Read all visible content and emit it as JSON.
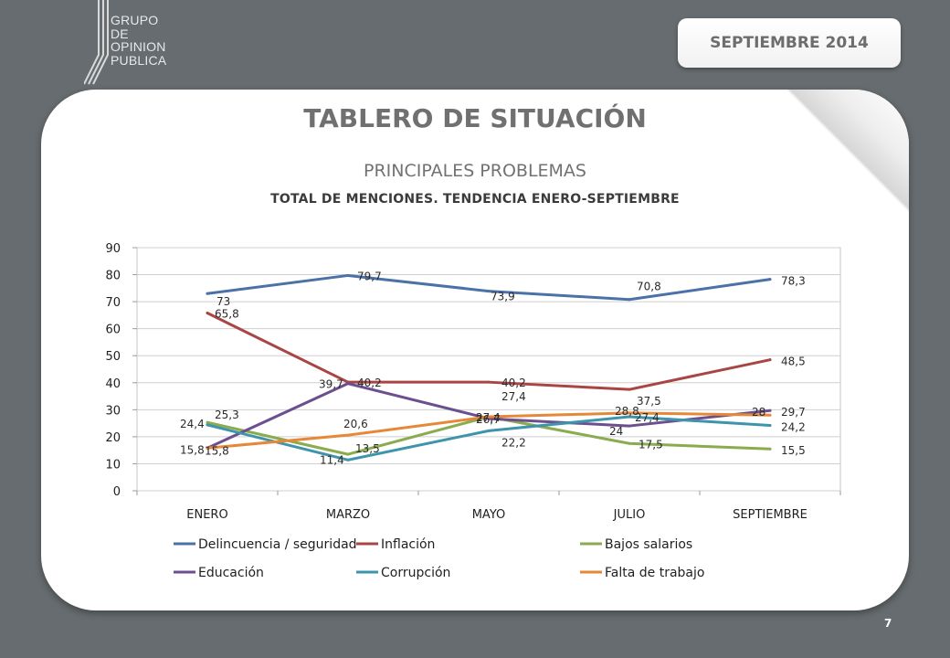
{
  "logo": {
    "text": "GRUPO\nDE\nOPINION\nPUBLICA"
  },
  "date_badge": "SEPTIEMBRE  2014",
  "header": {
    "title": "TABLERO DE SITUACIÓN",
    "subtitle": "PRINCIPALES PROBLEMAS"
  },
  "page_number": "7",
  "chart_data": {
    "type": "line",
    "title": "TOTAL DE MENCIONES. TENDENCIA ENERO-SEPTIEMBRE",
    "xlabel": "",
    "ylabel": "",
    "categories": [
      "ENERO",
      "MARZO",
      "MAYO",
      "JULIO",
      "SEPTIEMBRE"
    ],
    "ylim": [
      0,
      90
    ],
    "yticks": [
      0,
      10,
      20,
      30,
      40,
      50,
      60,
      70,
      80,
      90
    ],
    "grid": true,
    "legend": "bottom",
    "series": [
      {
        "name": "Delincuencia / seguridad",
        "color": "#4a72a8",
        "values": [
          73,
          79.7,
          73.9,
          70.8,
          78.3
        ],
        "labels": [
          "73",
          "79,7",
          "73,9",
          "70,8",
          "78,3"
        ]
      },
      {
        "name": "Inflación",
        "color": "#a94542",
        "values": [
          65.8,
          40.2,
          40.2,
          37.5,
          48.5
        ],
        "labels": [
          "65,8",
          "40,2",
          "40,2",
          "37,5",
          "48,5"
        ]
      },
      {
        "name": "Bajos salarios",
        "color": "#8bab4f",
        "values": [
          25.3,
          13.5,
          27.4,
          17.5,
          15.5
        ],
        "labels": [
          "25,3",
          "13,5",
          "27,4",
          "17,5",
          "15,5"
        ]
      },
      {
        "name": "Educación",
        "color": "#6d4f90",
        "values": [
          15.8,
          39.7,
          26.7,
          24,
          29.7
        ],
        "labels": [
          "15,8",
          "39,7",
          "26,7",
          "24",
          "29,7"
        ]
      },
      {
        "name": "Corrupción",
        "color": "#3e94ab",
        "values": [
          24.4,
          11.4,
          22.2,
          27.4,
          24.2
        ],
        "labels": [
          "24,4",
          "11,4",
          "22,2",
          "27,4",
          "24,2"
        ]
      },
      {
        "name": "Falta de trabajo",
        "color": "#e6883a",
        "values": [
          15.8,
          20.6,
          27.4,
          28.8,
          28
        ],
        "labels": [
          "15,8",
          "20,6",
          "27,4",
          "28,8",
          "28"
        ]
      }
    ]
  }
}
